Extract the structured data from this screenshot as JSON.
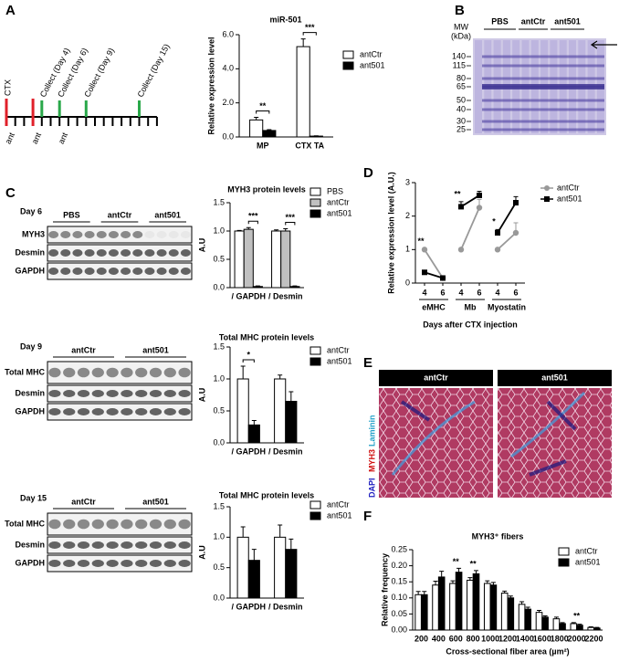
{
  "panel_labels": [
    "A",
    "B",
    "C",
    "D",
    "E",
    "F"
  ],
  "timeline": {
    "injection_label": "CTX",
    "collect_labels": [
      "Collect (Day 4)",
      "Collect (Day 6)",
      "Collect (Day 9)",
      "Collect (Day 15)"
    ],
    "ant_labels": [
      "ant",
      "ant",
      "ant"
    ]
  },
  "gel": {
    "mw_label": [
      "MW",
      "(kDa)"
    ],
    "markers": [
      140,
      115,
      80,
      65,
      50,
      40,
      30,
      25
    ],
    "groups": [
      "PBS",
      "antCtr",
      "ant501"
    ]
  },
  "blots": [
    {
      "day": "Day 6",
      "groups": [
        "PBS",
        "antCtr",
        "ant501"
      ],
      "rows": [
        "MYH3",
        "Desmin",
        "GAPDH"
      ]
    },
    {
      "day": "Day 9",
      "groups": [
        "antCtr",
        "ant501"
      ],
      "rows": [
        "Total MHC",
        "Desmin",
        "GAPDH"
      ]
    },
    {
      "day": "Day 15",
      "groups": [
        "antCtr",
        "ant501"
      ],
      "rows": [
        "Total MHC",
        "Desmin",
        "GAPDH"
      ]
    }
  ],
  "image": {
    "groups": [
      "antCtr",
      "ant501"
    ],
    "stains": [
      "DAPI",
      "MYH3",
      "Laminin"
    ]
  },
  "chart_data": [
    {
      "type": "bar",
      "title": "miR-501",
      "ylabel": "Relative expression level",
      "categories": [
        "MP",
        "CTX TA"
      ],
      "series": [
        {
          "name": "antCtr",
          "color": "#ffffff",
          "values": [
            1.0,
            5.3
          ],
          "errors": [
            0.15,
            0.45
          ]
        },
        {
          "name": "ant501",
          "color": "#000000",
          "values": [
            0.38,
            0.05
          ],
          "errors": [
            0.05,
            0.02
          ]
        }
      ],
      "ylim": [
        0,
        6
      ],
      "yticks": [
        {
          "value": 0,
          "label": "0.0"
        },
        {
          "value": 2,
          "label": "2.0"
        },
        {
          "value": 4,
          "label": "4.0"
        },
        {
          "value": 6,
          "label": "6.0"
        }
      ],
      "annotations": [
        "**",
        "***"
      ]
    },
    {
      "type": "bar",
      "title": "MYH3 protein levels",
      "ylabel": "A.U",
      "categories": [
        "/ GAPDH",
        "/ Desmin"
      ],
      "series": [
        {
          "name": "PBS",
          "color": "#ffffff",
          "values": [
            1.0,
            1.0
          ],
          "errors": [
            0.01,
            0.02
          ]
        },
        {
          "name": "antCtr",
          "color": "#c0c0c0",
          "values": [
            1.03,
            1.0
          ],
          "errors": [
            0.03,
            0.04
          ]
        },
        {
          "name": "ant501",
          "color": "#000000",
          "values": [
            0.02,
            0.02
          ],
          "errors": [
            0.01,
            0.01
          ]
        }
      ],
      "ylim": [
        0,
        1.5
      ],
      "yticks": [
        {
          "value": 0,
          "label": "0.0"
        },
        {
          "value": 0.5,
          "label": "0.5"
        },
        {
          "value": 1,
          "label": "1.0"
        },
        {
          "value": 1.5,
          "label": "1.5"
        }
      ],
      "annotations": [
        "***",
        "***"
      ]
    },
    {
      "type": "bar",
      "title": "Total MHC protein levels",
      "ylabel": "A.U",
      "categories": [
        "/ GAPDH",
        "/ Desmin"
      ],
      "series": [
        {
          "name": "antCtr",
          "color": "#ffffff",
          "values": [
            1.0,
            1.0
          ],
          "errors": [
            0.2,
            0.06
          ]
        },
        {
          "name": "ant501",
          "color": "#000000",
          "values": [
            0.28,
            0.65
          ],
          "errors": [
            0.07,
            0.15
          ]
        }
      ],
      "ylim": [
        0,
        1.5
      ],
      "yticks": [
        {
          "value": 0,
          "label": "0.0"
        },
        {
          "value": 0.5,
          "label": "0.5"
        },
        {
          "value": 1,
          "label": "1.0"
        },
        {
          "value": 1.5,
          "label": "1.5"
        }
      ],
      "annotations": [
        "*"
      ]
    },
    {
      "type": "bar",
      "title": "Total MHC protein levels",
      "ylabel": "A.U",
      "categories": [
        "/ GAPDH",
        "/ Desmin"
      ],
      "series": [
        {
          "name": "antCtr",
          "color": "#ffffff",
          "values": [
            1.0,
            1.0
          ],
          "errors": [
            0.17,
            0.2
          ]
        },
        {
          "name": "ant501",
          "color": "#000000",
          "values": [
            0.62,
            0.8
          ],
          "errors": [
            0.18,
            0.17
          ]
        }
      ],
      "ylim": [
        0,
        1.5
      ],
      "yticks": [
        {
          "value": 0,
          "label": "0.0"
        },
        {
          "value": 0.5,
          "label": "0.5"
        },
        {
          "value": 1,
          "label": "1.0"
        },
        {
          "value": 1.5,
          "label": "1.5"
        }
      ]
    },
    {
      "type": "line",
      "ylabel": "Relative expression level (A.U.)",
      "xlabel": "Days after CTX injection",
      "groups": [
        "eMHC",
        "Mb",
        "Myostatin"
      ],
      "categories": [
        "4",
        "6",
        "4",
        "6",
        "4",
        "6"
      ],
      "series": [
        {
          "name": "antCtr",
          "color": "#999999",
          "values": [
            1.0,
            0.15,
            1.0,
            2.25,
            1.0,
            1.5
          ],
          "errors": [
            0.02,
            0.03,
            0.02,
            0.25,
            0.02,
            0.3
          ]
        },
        {
          "name": "ant501",
          "color": "#000000",
          "values": [
            0.32,
            0.15,
            2.28,
            2.62,
            1.5,
            2.4
          ],
          "errors": [
            0.03,
            0.03,
            0.15,
            0.12,
            0.1,
            0.18
          ]
        }
      ],
      "ylim": [
        0,
        3
      ],
      "yticks": [
        0,
        1,
        2,
        3
      ],
      "annotations": [
        "**",
        "**",
        "*"
      ]
    },
    {
      "type": "bar",
      "title": "MYH3⁺ fibers",
      "ylabel": "Relative frequency",
      "xlabel": "Cross-sectional fiber area (µm²)",
      "categories": [
        "200",
        "400",
        "600",
        "800",
        "1000",
        "1200",
        "1400",
        "1600",
        "1800",
        "2000",
        "2200"
      ],
      "series": [
        {
          "name": "antCtr",
          "color": "#ffffff",
          "values": [
            0.11,
            0.14,
            0.145,
            0.155,
            0.145,
            0.115,
            0.08,
            0.055,
            0.035,
            0.02,
            0.008
          ],
          "errors": [
            0.01,
            0.012,
            0.008,
            0.008,
            0.008,
            0.006,
            0.008,
            0.006,
            0.005,
            0.003,
            0.002
          ]
        },
        {
          "name": "ant501",
          "color": "#000000",
          "values": [
            0.11,
            0.165,
            0.18,
            0.175,
            0.14,
            0.1,
            0.065,
            0.04,
            0.02,
            0.015,
            0.006
          ],
          "errors": [
            0.01,
            0.018,
            0.012,
            0.01,
            0.008,
            0.006,
            0.006,
            0.004,
            0.003,
            0.003,
            0.002
          ]
        }
      ],
      "ylim": [
        0,
        0.25
      ],
      "yticks": [
        {
          "value": 0,
          "label": "0.00"
        },
        {
          "value": 0.05,
          "label": "0.05"
        },
        {
          "value": 0.1,
          "label": "0.10"
        },
        {
          "value": 0.15,
          "label": "0.15"
        },
        {
          "value": 0.2,
          "label": "0.20"
        },
        {
          "value": 0.25,
          "label": "0.25"
        }
      ],
      "annotations": [
        "**",
        "**",
        "**"
      ]
    }
  ]
}
